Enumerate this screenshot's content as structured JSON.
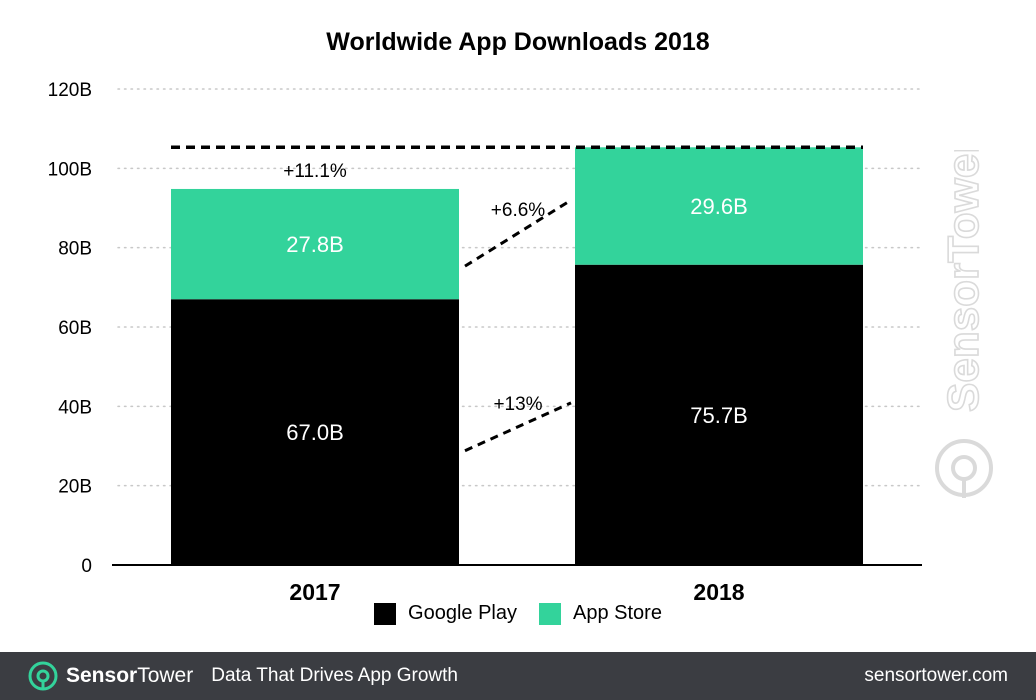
{
  "chart_data": {
    "type": "bar",
    "stacked": true,
    "title": "Worldwide App Downloads 2018",
    "categories": [
      "2017",
      "2018"
    ],
    "series": [
      {
        "name": "Google Play",
        "values": [
          67.0,
          75.7
        ],
        "labels": [
          "67.0B",
          "75.7B"
        ],
        "color": "#000000",
        "label_color": "#ffffff"
      },
      {
        "name": "App Store",
        "values": [
          27.8,
          29.6
        ],
        "labels": [
          "27.8B",
          "29.6B"
        ],
        "color": "#33d39b",
        "label_color": "#ffffff"
      }
    ],
    "ylim": [
      0,
      120
    ],
    "yticks": [
      {
        "value": 0,
        "label": "0"
      },
      {
        "value": 20,
        "label": "20B"
      },
      {
        "value": 40,
        "label": "40B"
      },
      {
        "value": 60,
        "label": "60B"
      },
      {
        "value": 80,
        "label": "80B"
      },
      {
        "value": 100,
        "label": "100B"
      },
      {
        "value": 120,
        "label": "120B"
      }
    ],
    "grid": true,
    "legend_position": "bottom-center",
    "annotations": {
      "total_growth": "+11.1%",
      "app_store_growth": "+6.6%",
      "google_play_growth": "+13%"
    }
  },
  "watermark": {
    "text": "SensorTower"
  },
  "footer": {
    "brand_prefix": "Sensor",
    "brand_suffix": "Tower",
    "tagline": "Data That Drives App Growth",
    "website": "sensortower.com",
    "accent_color": "#33d39b"
  }
}
